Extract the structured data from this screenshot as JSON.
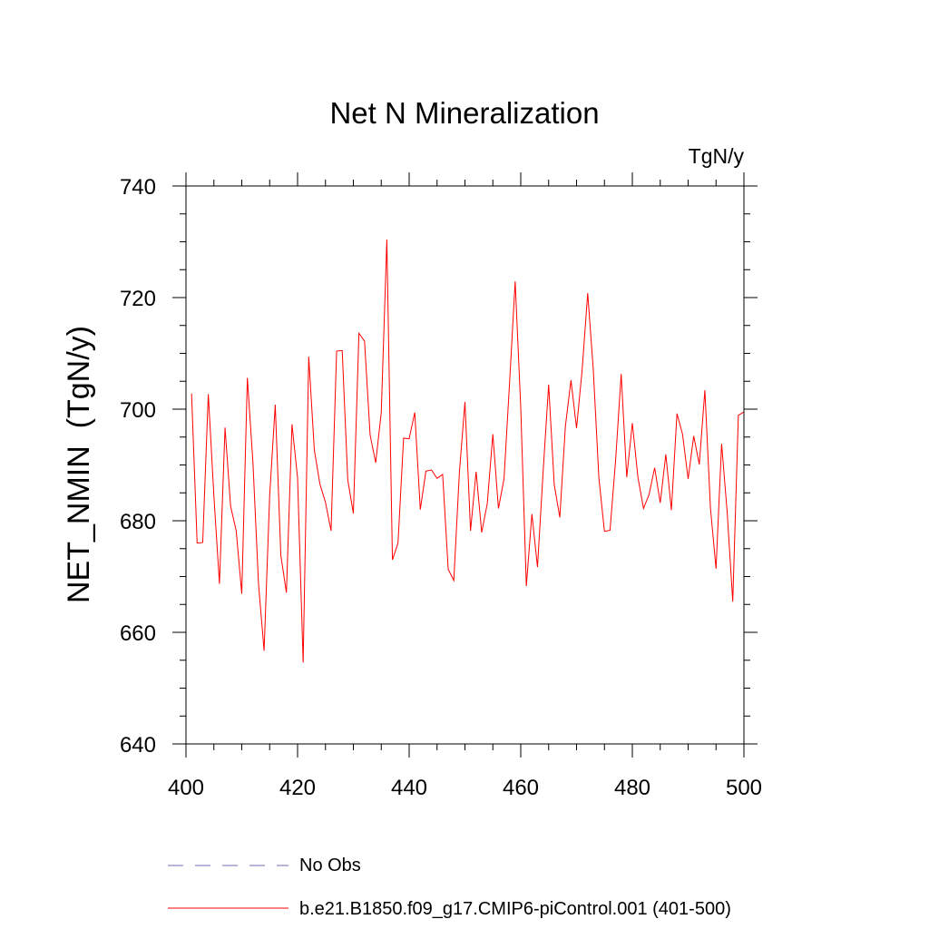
{
  "chart_data": {
    "type": "line",
    "title": "Net N Mineralization",
    "units_label": "TgN/y",
    "xlabel": "",
    "ylabel": "NET_NMIN  (TgN/y)",
    "xlim": [
      400,
      500
    ],
    "ylim": [
      640,
      740
    ],
    "x_ticks": [
      400,
      420,
      440,
      460,
      480,
      500
    ],
    "y_ticks": [
      640,
      660,
      680,
      700,
      720,
      740
    ],
    "x_tick_labels": [
      "400",
      "420",
      "440",
      "460",
      "480",
      "500"
    ],
    "y_tick_labels": [
      "640",
      "660",
      "680",
      "700",
      "720",
      "740"
    ],
    "grid": false,
    "legend_position": "bottom",
    "series": [
      {
        "name": "b.e21.B1850.f09_g17.CMIP6-piControl.001 (401-500)",
        "color": "#ff0000",
        "style": "solid",
        "x_start": 401,
        "x_step": 1,
        "values": [
          702.8,
          676,
          676.1,
          702.7,
          684.5,
          668.7,
          696.7,
          682.6,
          678.2,
          666.9,
          705.6,
          690.5,
          668.7,
          656.7,
          684.5,
          700.8,
          673.8,
          667.1,
          697.3,
          687.7,
          654.6,
          709.4,
          692.7,
          686.6,
          683.3,
          678.2,
          710.4,
          710.5,
          687.3,
          681.3,
          713.6,
          712.2,
          695.4,
          690.4,
          699.4,
          730.4,
          673,
          676,
          694.8,
          694.7,
          699.4,
          682,
          688.9,
          689.1,
          687.6,
          688.3,
          671.3,
          669.3,
          688.6,
          701.3,
          678.2,
          688.8,
          677.9,
          683.1,
          695.5,
          682.2,
          687.5,
          704.8,
          722.9,
          700.3,
          668.3,
          681.2,
          671.7,
          688.6,
          704.4,
          686.5,
          680.6,
          696.9,
          705.2,
          696.6,
          707,
          720.8,
          707.1,
          687.7,
          678.1,
          678.3,
          690.8,
          706.3,
          687.8,
          697.5,
          687.8,
          682.2,
          684.7,
          689.5,
          683.2,
          691.9,
          681.9,
          699.2,
          695.5,
          687.5,
          695.2,
          690.1,
          703.4,
          682.3,
          671.4,
          693.8,
          681.5,
          665.5,
          698.9,
          699.5
        ]
      },
      {
        "name": "No Obs",
        "color": "#6e6eb4",
        "style": "dashed",
        "values": []
      }
    ]
  }
}
